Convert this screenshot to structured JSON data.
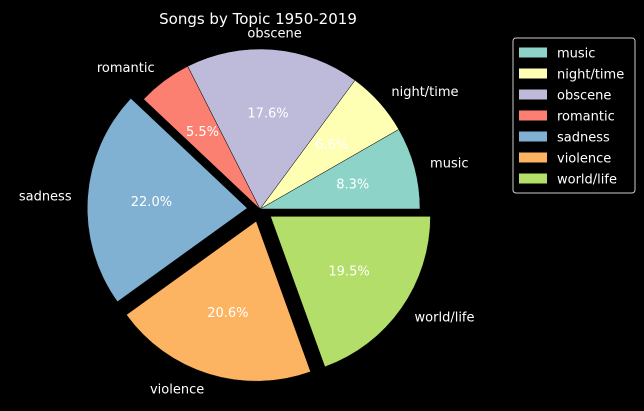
{
  "chart_data": {
    "type": "pie",
    "title": "Songs by Topic 1950-2019",
    "labels": [
      "music",
      "night/time",
      "obscene",
      "romantic",
      "sadness",
      "violence",
      "world/life"
    ],
    "values": [
      8.3,
      6.6,
      17.6,
      5.5,
      22.0,
      20.6,
      19.5
    ],
    "pct_labels": [
      "8.3%",
      "6.6%",
      "17.6%",
      "5.5%",
      "22.0%",
      "20.6%",
      "19.5%"
    ],
    "exploded": [
      false,
      false,
      false,
      false,
      true,
      true,
      true
    ],
    "colors": [
      "#8dd3c7",
      "#ffffb3",
      "#bebada",
      "#fb8072",
      "#80b1d3",
      "#fdb462",
      "#b3de69"
    ],
    "legend": {
      "position": "upper-right-outside",
      "entries": [
        "music",
        "night/time",
        "obscene",
        "romantic",
        "sadness",
        "violence",
        "world/life"
      ]
    },
    "start_angle_deg": 0,
    "direction": "counterclockwise"
  },
  "theme": {
    "background": "#000000",
    "text": "#ffffff",
    "legend_border": "#cccccc",
    "slice_edge": "#000000"
  }
}
